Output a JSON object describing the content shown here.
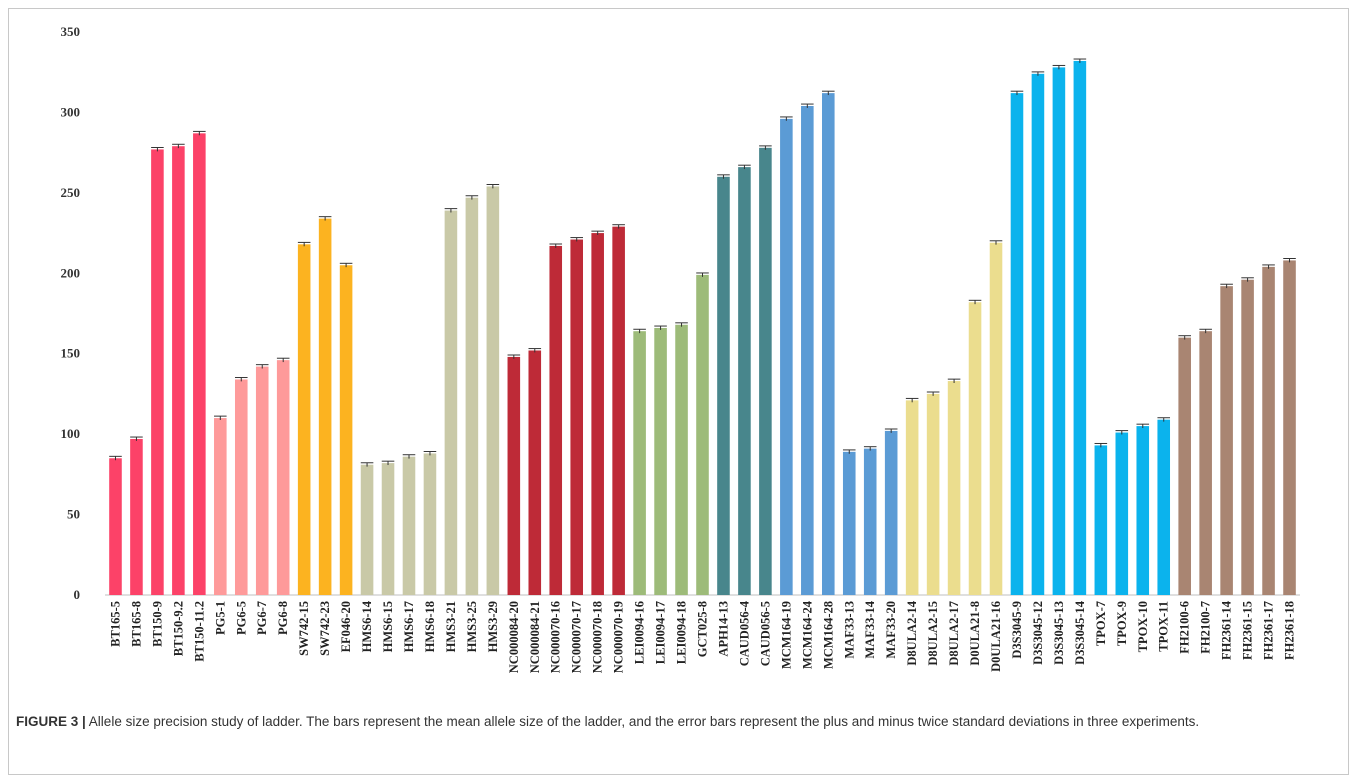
{
  "caption": {
    "label": "FIGURE 3 |",
    "text": " Allele size precision study of ladder. The bars represent the mean allele size of the ladder, and the error bars represent the plus and minus twice standard deviations in three experiments."
  },
  "chart_data": {
    "type": "bar",
    "title": "",
    "xlabel": "",
    "ylabel": "",
    "ylim": [
      0,
      350
    ],
    "yticks": [
      0,
      50,
      100,
      150,
      200,
      250,
      300,
      350
    ],
    "grid": false,
    "error_bars": true,
    "categories": [
      "BT165-5",
      "BT165-8",
      "BT150-9",
      "BT150-9.2",
      "BT150-11.2",
      "PG5-1",
      "PG6-5",
      "PG6-7",
      "PG6-8",
      "SW742-15",
      "SW742-23",
      "EF046-20",
      "HMS6-14",
      "HMS6-15",
      "HMS6-17",
      "HMS6-18",
      "HMS3-21",
      "HMS3-25",
      "HMS3-29",
      "NC000084-20",
      "NC000084-21",
      "NC000070-16",
      "NC000070-17",
      "NC000070-18",
      "NC000070-19",
      "LEI0094-16",
      "LEI0094-17",
      "LEI0094-18",
      "GCT025-8",
      "APH14-13",
      "CAUD056-4",
      "CAUD056-5",
      "MCM164-19",
      "MCM164-24",
      "MCM164-28",
      "MAF33-13",
      "MAF33-14",
      "MAF33-20",
      "D8ULA2-14",
      "D8ULA2-15",
      "D8ULA2-17",
      "D0ULA21-8",
      "D0ULA21-16",
      "D3S3045-9",
      "D3S3045-12",
      "D3S3045-13",
      "D3S3045-14",
      "TPOX-7",
      "TPOX-9",
      "TPOX-10",
      "TPOX-11",
      "FH2100-6",
      "FH2100-7",
      "FH2361-14",
      "FH2361-15",
      "FH2361-17",
      "FH2361-18"
    ],
    "values": [
      85,
      97,
      277,
      279,
      287,
      110,
      134,
      142,
      146,
      218,
      234,
      205,
      81,
      82,
      86,
      88,
      239,
      247,
      254,
      148,
      152,
      217,
      221,
      225,
      229,
      164,
      166,
      168,
      199,
      260,
      266,
      278,
      296,
      304,
      312,
      89,
      91,
      102,
      121,
      125,
      133,
      182,
      219,
      312,
      324,
      328,
      332,
      93,
      101,
      105,
      109,
      160,
      164,
      192,
      196,
      204,
      208
    ],
    "colors": [
      "#fc4268",
      "#fc4268",
      "#fc4268",
      "#fc4268",
      "#fc4268",
      "#fe9a9a",
      "#fe9a9a",
      "#fe9a9a",
      "#fe9a9a",
      "#fcb320",
      "#fcb320",
      "#fcb320",
      "#c9c9a7",
      "#c9c9a7",
      "#c9c9a7",
      "#c9c9a7",
      "#c9c9a7",
      "#c9c9a7",
      "#c9c9a7",
      "#be2a37",
      "#be2a37",
      "#be2a37",
      "#be2a37",
      "#be2a37",
      "#be2a37",
      "#9dbb79",
      "#9dbb79",
      "#9dbb79",
      "#9dbb79",
      "#48868c",
      "#48868c",
      "#48868c",
      "#5b9bd5",
      "#5b9bd5",
      "#5b9bd5",
      "#5b9bd5",
      "#5b9bd5",
      "#5b9bd5",
      "#ebdd8e",
      "#ebdd8e",
      "#ebdd8e",
      "#ebdd8e",
      "#ebdd8e",
      "#0bb3ed",
      "#0bb3ed",
      "#0bb3ed",
      "#0bb3ed",
      "#0bb3ed",
      "#0bb3ed",
      "#0bb3ed",
      "#0bb3ed",
      "#a98572",
      "#a98572",
      "#a98572",
      "#a98572",
      "#a98572",
      "#a98572"
    ]
  }
}
